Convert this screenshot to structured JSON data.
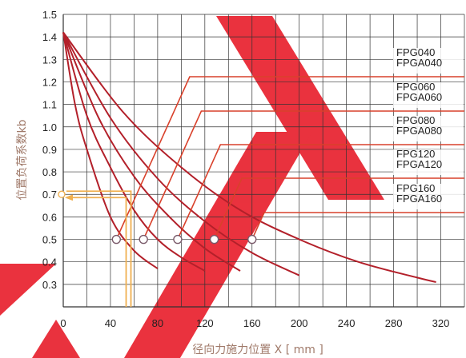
{
  "chart_data": {
    "type": "line",
    "title": "",
    "xlabel": "径向力施力位置 X [ mm ]",
    "ylabel": "位置负荷系数kb",
    "xlim": [
      0,
      340
    ],
    "ylim": [
      0.2,
      1.5
    ],
    "x_ticks": [
      "0",
      "40",
      "80",
      "120",
      "160",
      "200",
      "240",
      "280",
      "320"
    ],
    "y_ticks": [
      "1.5",
      "1.4",
      "1.3",
      "1.2",
      "1.1",
      "1.0",
      "0.9",
      "0.8",
      "0.7",
      "0.6",
      "0.5",
      "0.4",
      "0.3"
    ],
    "grid": true,
    "colors": {
      "grid": "#333333",
      "curve": "#b3202a",
      "leader": "#d9412b",
      "marker_fill": "#ffffff",
      "marker_stroke": "#7a5a6a",
      "guide": "#f0b050",
      "axis_title": "#a07a6a"
    },
    "series": [
      {
        "name": "FPG040 / FPGA040",
        "label_lines": [
          "FPG040",
          "FPGA040"
        ],
        "x": [
          0,
          10,
          20,
          40,
          60,
          80
        ],
        "y": [
          1.42,
          1.1,
          0.9,
          0.6,
          0.45,
          0.37
        ],
        "marker": [
          45,
          0.5
        ]
      },
      {
        "name": "FPG060 / FPGA060",
        "label_lines": [
          "FPG060",
          "FPGA060"
        ],
        "x": [
          0,
          20,
          40,
          60,
          80,
          100,
          120
        ],
        "y": [
          1.42,
          1.05,
          0.82,
          0.63,
          0.5,
          0.42,
          0.36
        ],
        "marker": [
          68,
          0.5
        ]
      },
      {
        "name": "FPG080 / FPGA080",
        "label_lines": [
          "FPG080",
          "FPGA080"
        ],
        "x": [
          0,
          30,
          60,
          90,
          120,
          150
        ],
        "y": [
          1.42,
          1.04,
          0.78,
          0.6,
          0.46,
          0.36
        ],
        "marker": [
          97,
          0.5
        ]
      },
      {
        "name": "FPG120 / FPGA120",
        "label_lines": [
          "FPG120",
          "FPGA120"
        ],
        "x": [
          0,
          40,
          80,
          120,
          160,
          200
        ],
        "y": [
          1.42,
          1.04,
          0.77,
          0.58,
          0.44,
          0.34
        ],
        "marker": [
          128,
          0.5
        ]
      },
      {
        "name": "FPG160 / FPGA160",
        "label_lines": [
          "FPG160",
          "FPGA160"
        ],
        "x": [
          0,
          50,
          100,
          150,
          200,
          250,
          300,
          316
        ],
        "y": [
          1.42,
          1.07,
          0.82,
          0.63,
          0.5,
          0.4,
          0.33,
          0.31
        ],
        "marker": [
          160,
          0.5
        ]
      }
    ],
    "example_reading": {
      "x": 56,
      "kb": 0.7
    }
  }
}
